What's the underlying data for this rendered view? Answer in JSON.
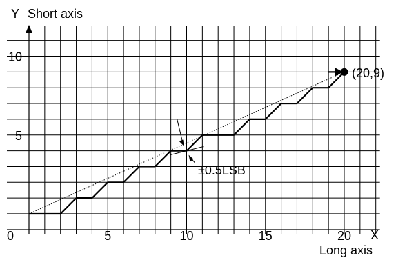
{
  "axes": {
    "y_label": "Y",
    "y_name": "Short axis",
    "x_label": "X",
    "x_name": "Long axis",
    "origin_label": "0",
    "x_ticks": [
      "5",
      "10",
      "15",
      "20"
    ],
    "y_ticks": [
      "5",
      "10"
    ],
    "x_range": [
      0,
      22
    ],
    "y_range": [
      -1,
      11
    ]
  },
  "line_end": {
    "label": "(20,9)",
    "x": 20,
    "y": 9
  },
  "tolerance": {
    "label": "±0.5LSB",
    "at_x": 10,
    "at_y": 4
  },
  "ideal_line": {
    "from": [
      0,
      0
    ],
    "to": [
      20,
      9
    ]
  },
  "colors": {
    "ink": "#000000",
    "grid": "#000000",
    "background": "#ffffff"
  }
}
